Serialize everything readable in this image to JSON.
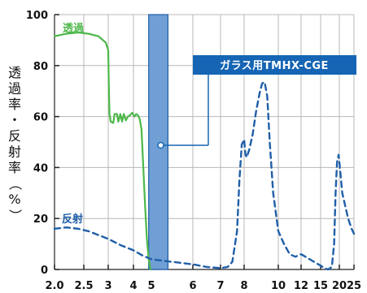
{
  "chart_data": {
    "type": "line",
    "ylabel": "透過率・反射率（%）",
    "xlabel": "",
    "ylim": [
      0,
      100
    ],
    "yticks": [
      0,
      20,
      40,
      60,
      80,
      100
    ],
    "xticks": [
      "2.0",
      "2.5",
      "3",
      "4",
      "5",
      "6",
      "7",
      "8",
      "10",
      "12",
      "15",
      "20",
      "25"
    ],
    "grid": true,
    "colors": {
      "transmission": "#4db84a",
      "reflection": "#1f5fa8",
      "band_fill": "#6f9fd4",
      "band_border": "#1f5fa8",
      "callout": "#1565b4"
    },
    "series": [
      {
        "name": "透過",
        "style": "solid",
        "points": [
          [
            2.0,
            91.5
          ],
          [
            2.2,
            92.5
          ],
          [
            2.4,
            93
          ],
          [
            2.6,
            92.5
          ],
          [
            2.8,
            91.5
          ],
          [
            2.95,
            89
          ],
          [
            3.0,
            86
          ],
          [
            3.02,
            75
          ],
          [
            3.05,
            61
          ],
          [
            3.1,
            58
          ],
          [
            3.2,
            57.5
          ],
          [
            3.25,
            61
          ],
          [
            3.35,
            61
          ],
          [
            3.4,
            58
          ],
          [
            3.48,
            61
          ],
          [
            3.55,
            58
          ],
          [
            3.62,
            61
          ],
          [
            3.7,
            58.5
          ],
          [
            3.78,
            60
          ],
          [
            3.86,
            60.5
          ],
          [
            3.95,
            61.5
          ],
          [
            4.05,
            60
          ],
          [
            4.15,
            61
          ],
          [
            4.25,
            60.5
          ],
          [
            4.35,
            59
          ],
          [
            4.45,
            55
          ],
          [
            4.55,
            40
          ],
          [
            4.65,
            25
          ],
          [
            4.75,
            12
          ],
          [
            4.85,
            4
          ],
          [
            4.95,
            0
          ]
        ]
      },
      {
        "name": "反射",
        "style": "dashed",
        "points": [
          [
            2.0,
            16
          ],
          [
            2.2,
            16.5
          ],
          [
            2.4,
            16
          ],
          [
            2.6,
            15
          ],
          [
            2.8,
            13.5
          ],
          [
            3.0,
            12
          ],
          [
            3.2,
            11
          ],
          [
            3.5,
            9.5
          ],
          [
            4.0,
            7.5
          ],
          [
            4.5,
            5.5
          ],
          [
            5.0,
            4
          ],
          [
            5.5,
            3
          ],
          [
            6.0,
            2
          ],
          [
            6.5,
            1
          ],
          [
            7.0,
            0.5
          ],
          [
            7.3,
            1
          ],
          [
            7.5,
            3
          ],
          [
            7.7,
            15
          ],
          [
            7.8,
            35
          ],
          [
            7.9,
            49
          ],
          [
            8.0,
            51
          ],
          [
            8.08,
            45
          ],
          [
            8.15,
            44
          ],
          [
            8.3,
            47
          ],
          [
            8.5,
            53
          ],
          [
            8.7,
            62
          ],
          [
            8.9,
            69
          ],
          [
            9.05,
            73
          ],
          [
            9.2,
            73.5
          ],
          [
            9.35,
            68
          ],
          [
            9.5,
            50
          ],
          [
            9.7,
            30
          ],
          [
            10.0,
            15
          ],
          [
            10.5,
            10
          ],
          [
            11.0,
            6
          ],
          [
            11.5,
            5
          ],
          [
            12.0,
            6
          ],
          [
            13.0,
            4.5
          ],
          [
            14.0,
            3
          ],
          [
            15.0,
            1.5
          ],
          [
            16.0,
            0.5
          ],
          [
            17.0,
            0
          ],
          [
            18.0,
            1
          ],
          [
            18.6,
            10
          ],
          [
            19.0,
            30
          ],
          [
            19.4,
            42
          ],
          [
            19.8,
            45
          ],
          [
            20.2,
            40
          ],
          [
            21.0,
            30
          ],
          [
            23.0,
            20
          ],
          [
            24.2,
            16
          ],
          [
            25.0,
            14
          ]
        ]
      }
    ],
    "band": {
      "from": 4.85,
      "to": 5.4,
      "label": "ガラス用TMHX-CGE",
      "marker_y": 50
    }
  }
}
